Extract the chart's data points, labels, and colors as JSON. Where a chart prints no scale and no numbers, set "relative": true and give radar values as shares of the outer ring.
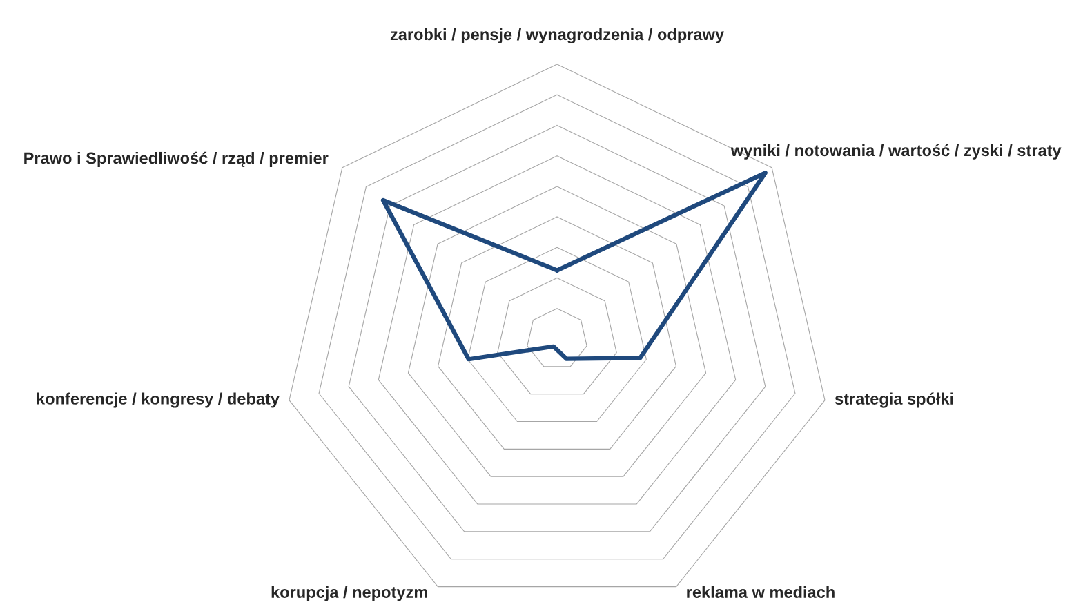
{
  "chart_data": {
    "type": "radar",
    "relative": true,
    "grid": true,
    "marker": "none",
    "line_style": "solid",
    "categories": [
      "zarobki / pensje / wynagrodzenia / odprawy",
      "wyniki / notowania / wartość / zyski / straty",
      "strategia spółki",
      "reklama w mediach",
      "korupcja / nepotyzm",
      "konferencje / kongresy / debaty",
      "Prawo i Sprawiedliwość / rząd / premier"
    ],
    "series": [
      {
        "color": "#1f497d",
        "values": [
          0.25,
          0.97,
          0.31,
          0.08,
          0.03,
          0.33,
          0.81
        ]
      }
    ]
  }
}
